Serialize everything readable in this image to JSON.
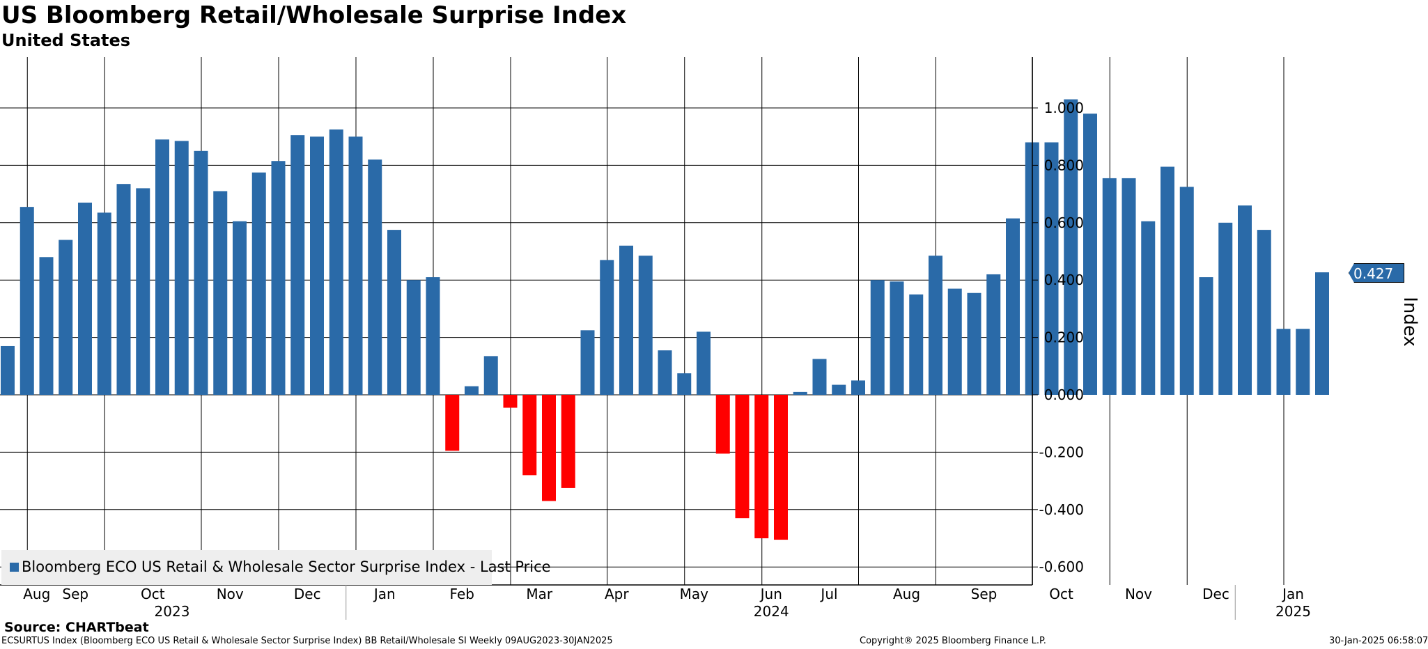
{
  "chart_data": {
    "type": "bar",
    "title": "US Bloomberg Retail/Wholesale Surprise Index",
    "subtitle": "United States",
    "ylabel": "Index",
    "ylim": [
      -0.65,
      1.18
    ],
    "yticks": [
      "1.000",
      "0.800",
      "0.600",
      "0.400",
      "0.200",
      "0.000",
      "-0.200",
      "-0.400",
      "-0.600"
    ],
    "ytick_values": [
      1.0,
      0.8,
      0.6,
      0.4,
      0.2,
      0.0,
      -0.2,
      -0.4,
      -0.6
    ],
    "frequency": "Weekly",
    "date_range": "09AUG2023-30JAN2025",
    "values": [
      0.17,
      0.655,
      0.48,
      0.54,
      0.67,
      0.635,
      0.735,
      0.72,
      0.89,
      0.885,
      0.85,
      0.71,
      0.605,
      0.775,
      0.815,
      0.905,
      0.9,
      0.925,
      0.9,
      0.82,
      0.575,
      0.4,
      0.41,
      -0.195,
      0.03,
      0.135,
      -0.045,
      -0.28,
      -0.37,
      -0.325,
      0.225,
      0.47,
      0.52,
      0.485,
      0.155,
      0.075,
      0.22,
      -0.205,
      -0.43,
      -0.5,
      -0.505,
      0.01,
      0.125,
      0.035,
      0.05,
      0.4,
      0.395,
      0.35,
      0.485,
      0.37,
      0.355,
      0.42,
      0.615,
      0.88,
      0.88,
      1.03,
      0.98,
      0.755,
      0.755,
      0.605,
      0.795,
      0.725,
      0.41,
      0.6,
      0.66,
      0.575,
      0.23,
      0.23,
      0.427
    ],
    "month_labels": [
      "Aug",
      "Sep",
      "Oct",
      "Nov",
      "Dec",
      "Jan",
      "Feb",
      "Mar",
      "Apr",
      "May",
      "Jun",
      "Jul",
      "Aug",
      "Sep",
      "Oct",
      "Nov",
      "Dec",
      "Jan"
    ],
    "month_label_bar_index": [
      1,
      3,
      7,
      11,
      15,
      19,
      23,
      27,
      31,
      35,
      39,
      42,
      46,
      50,
      54,
      58,
      62,
      66
    ],
    "year_labels": [
      "2023",
      "2024",
      "2025"
    ],
    "year_label_bar_index": [
      8,
      39,
      66
    ],
    "year_divider_bar_index": [
      17,
      63
    ],
    "gridline_bar_index": [
      1,
      5,
      10,
      14,
      18,
      22,
      26,
      31,
      35,
      39,
      44,
      48,
      53,
      57,
      61,
      66
    ],
    "last_price": "0.427",
    "positive_color": "#2a6aa8",
    "negative_color": "#ff0000",
    "legend": "Bloomberg ECO US Retail & Wholesale Sector Surprise Index - Last Price"
  },
  "source": "Source: CHARTbeat",
  "footer": {
    "left": "ECSURTUS Index (Bloomberg ECO US Retail & Wholesale Sector Surprise Index) BB Retail/Wholesale SI  Weekly 09AUG2023-30JAN2025",
    "center": "Copyright® 2025 Bloomberg Finance L.P.",
    "right": "30-Jan-2025 06:58:07"
  }
}
